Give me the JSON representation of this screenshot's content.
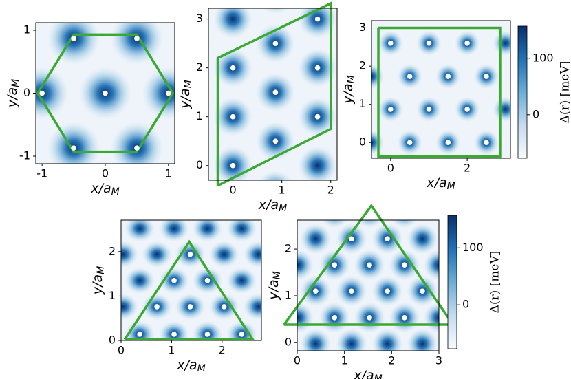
{
  "chart_data": [
    {
      "type": "heatmap",
      "xlabel": {
        "text": "x/a",
        "sub": "M"
      },
      "ylabel": {
        "text": "y/a",
        "sub": "M"
      },
      "xlim": [
        -1.1,
        1.1
      ],
      "ylim": [
        -1.12,
        1.12
      ],
      "xticks": [
        -1,
        0,
        1
      ],
      "yticks": [
        -1,
        0,
        1
      ],
      "maxima": {
        "x": [
          0,
          1,
          -1,
          0.5,
          -0.5,
          0.5,
          -0.5
        ],
        "y": [
          0,
          0,
          0,
          0.87,
          0.87,
          -0.87,
          -0.87
        ]
      },
      "points": {
        "x": [
          0,
          1,
          -1,
          0.5,
          -0.5,
          0.5,
          -0.5
        ],
        "y": [
          0,
          0,
          0,
          0.87,
          0.87,
          -0.87,
          -0.87
        ]
      },
      "outline": {
        "x": [
          -0.5,
          0.5,
          1.07,
          0.5,
          -0.5,
          -1.07,
          -0.5
        ],
        "y": [
          0.93,
          0.93,
          0,
          -0.93,
          -0.93,
          0,
          0.93
        ]
      },
      "outline_color": "#3aa832"
    },
    {
      "type": "heatmap",
      "xlabel": {
        "text": "x/a",
        "sub": "M"
      },
      "ylabel": {
        "text": "y/a",
        "sub": "M"
      },
      "xlim": [
        -0.5,
        2.13
      ],
      "ylim": [
        -0.3,
        3.22
      ],
      "xticks": [
        0,
        1,
        2
      ],
      "yticks": [
        0,
        1,
        2,
        3
      ],
      "maxima": {
        "x": [
          0,
          0,
          0,
          0,
          0.87,
          0.87,
          0.87,
          0.87,
          0.87,
          1.73,
          1.73,
          1.73,
          1.73,
          -0.87,
          -0.87,
          -0.87
        ],
        "y": [
          0,
          1,
          2,
          3,
          -0.5,
          0.5,
          1.5,
          2.5,
          3.5,
          0,
          1,
          2,
          3,
          0.5,
          1.5,
          2.5
        ]
      },
      "points": {
        "x": [
          0,
          0,
          0,
          0.87,
          0.87,
          0.87,
          1.73,
          1.73,
          1.73
        ],
        "y": [
          0,
          1,
          2,
          0.5,
          1.5,
          2.5,
          1,
          2,
          3
        ]
      },
      "outline": {
        "x": [
          -0.31,
          -0.31,
          2,
          2,
          -0.31
        ],
        "y": [
          -0.41,
          2.2,
          3.32,
          0.75,
          -0.41
        ]
      },
      "outline_color": "#3aa832"
    },
    {
      "type": "heatmap",
      "xlabel": {
        "text": "x/a",
        "sub": "M"
      },
      "ylabel": {
        "text": "y/a",
        "sub": "M"
      },
      "xlim": [
        -0.5,
        3.13
      ],
      "ylim": [
        -0.41,
        3.19
      ],
      "xticks": [
        0,
        2
      ],
      "yticks": [
        0,
        1,
        2,
        3
      ],
      "maxima": {
        "x": [
          0,
          1,
          2,
          0.5,
          1.5,
          2.5,
          0,
          1,
          2,
          0.5,
          1.5,
          2.5,
          -0.5,
          -0.5,
          3,
          3
        ],
        "y": [
          2.6,
          2.6,
          2.6,
          1.73,
          1.73,
          1.73,
          0.87,
          0.87,
          0.87,
          0,
          0,
          0,
          0,
          1.73,
          0.87,
          2.6
        ]
      },
      "points": {
        "x": [
          0,
          1,
          2,
          0.5,
          1.5,
          2.5,
          0,
          1,
          2,
          0.5,
          1.5,
          2.5
        ],
        "y": [
          2.6,
          2.6,
          2.6,
          1.73,
          1.73,
          1.73,
          0.87,
          0.87,
          0.87,
          0,
          0,
          0
        ]
      },
      "outline": {
        "x": [
          -0.32,
          2.86,
          2.86,
          -0.32,
          -0.32
        ],
        "y": [
          3.0,
          3.0,
          -0.36,
          -0.36,
          3.0
        ]
      },
      "outline_color": "#3aa832"
    },
    {
      "type": "colorbar",
      "label": "Δ(r) [meV]",
      "ylim": [
        -77,
        157
      ],
      "yticks": [
        0,
        100
      ],
      "colors": [
        "#f7fbff",
        "#c6dbef",
        "#6baed6",
        "#2171b5",
        "#08306b"
      ]
    },
    {
      "type": "heatmap",
      "xlabel": {
        "text": "x/a",
        "sub": "M"
      },
      "ylabel": {
        "text": "y/a",
        "sub": "M"
      },
      "xlim": [
        0,
        2.78
      ],
      "ylim": [
        0,
        2.71
      ],
      "xticks": [
        0,
        1,
        2
      ],
      "yticks": [
        0,
        1,
        2
      ],
      "maxima": {
        "x": [
          0.37,
          1.05,
          1.71,
          2.39,
          0.04,
          0.71,
          1.37,
          2.04,
          2.72,
          0.37,
          1.05,
          1.71,
          2.39,
          0.04,
          0.71,
          1.37,
          2.04,
          2.72,
          0.37,
          1.05,
          1.71,
          2.39
        ],
        "y": [
          0.14,
          0.14,
          0.14,
          0.14,
          0.76,
          0.76,
          0.76,
          0.76,
          0.76,
          1.35,
          1.35,
          1.35,
          1.35,
          1.94,
          1.94,
          1.94,
          1.94,
          1.94,
          2.52,
          2.52,
          2.52,
          2.52
        ]
      },
      "points": {
        "x": [
          1.37,
          1.05,
          1.71,
          0.71,
          1.37,
          2.04,
          0.37,
          1.05,
          1.71,
          2.39
        ],
        "y": [
          1.94,
          1.35,
          1.35,
          0.76,
          0.76,
          0.76,
          0.14,
          0.14,
          0.14,
          0.14
        ]
      },
      "outline": {
        "x": [
          0.07,
          1.35,
          2.61,
          0.07
        ],
        "y": [
          0.02,
          2.22,
          0.02,
          0.02
        ]
      },
      "outline_color": "#3aa832"
    },
    {
      "type": "heatmap",
      "xlabel": {
        "text": "x/a",
        "sub": "M"
      },
      "ylabel": {
        "text": "y/a",
        "sub": "M"
      },
      "xlim": [
        0,
        3
      ],
      "ylim": [
        -0.18,
        2.62
      ],
      "xticks": [
        0,
        1,
        2,
        3
      ],
      "yticks": [
        0,
        1,
        2
      ],
      "maxima": {
        "x": [
          0.39,
          1.15,
          1.91,
          2.65,
          0.02,
          0.79,
          1.53,
          2.27,
          3.0,
          0.39,
          1.15,
          1.91,
          2.65,
          0.02,
          0.79,
          1.53,
          2.27,
          3.0,
          0.39,
          1.15,
          1.91,
          2.65,
          0.79,
          1.53,
          2.27
        ],
        "y": [
          -0.03,
          -0.03,
          -0.03,
          -0.03,
          0.53,
          0.53,
          0.53,
          0.53,
          0.53,
          1.1,
          1.1,
          1.1,
          1.1,
          1.66,
          1.66,
          1.66,
          1.66,
          1.66,
          2.22,
          2.22,
          2.22,
          2.22,
          2.78,
          2.78,
          2.78
        ]
      },
      "points": {
        "x": [
          1.15,
          1.91,
          0.79,
          1.53,
          2.27,
          0.39,
          1.15,
          1.91,
          2.65,
          0.79,
          1.53,
          2.27
        ],
        "y": [
          2.22,
          2.22,
          1.66,
          1.66,
          1.66,
          1.1,
          1.1,
          1.1,
          1.1,
          0.53,
          0.53,
          0.53
        ]
      },
      "outline": {
        "x": [
          -0.28,
          1.57,
          3.3,
          -0.28
        ],
        "y": [
          0.38,
          2.93,
          0.38,
          0.38
        ]
      },
      "outline_color": "#3aa832"
    },
    {
      "type": "colorbar",
      "label": "Δ(r) [meV]",
      "ylim": [
        -77,
        157
      ],
      "yticks": [
        0,
        100
      ],
      "colors": [
        "#f7fbff",
        "#c6dbef",
        "#6baed6",
        "#2171b5",
        "#08306b"
      ]
    }
  ]
}
